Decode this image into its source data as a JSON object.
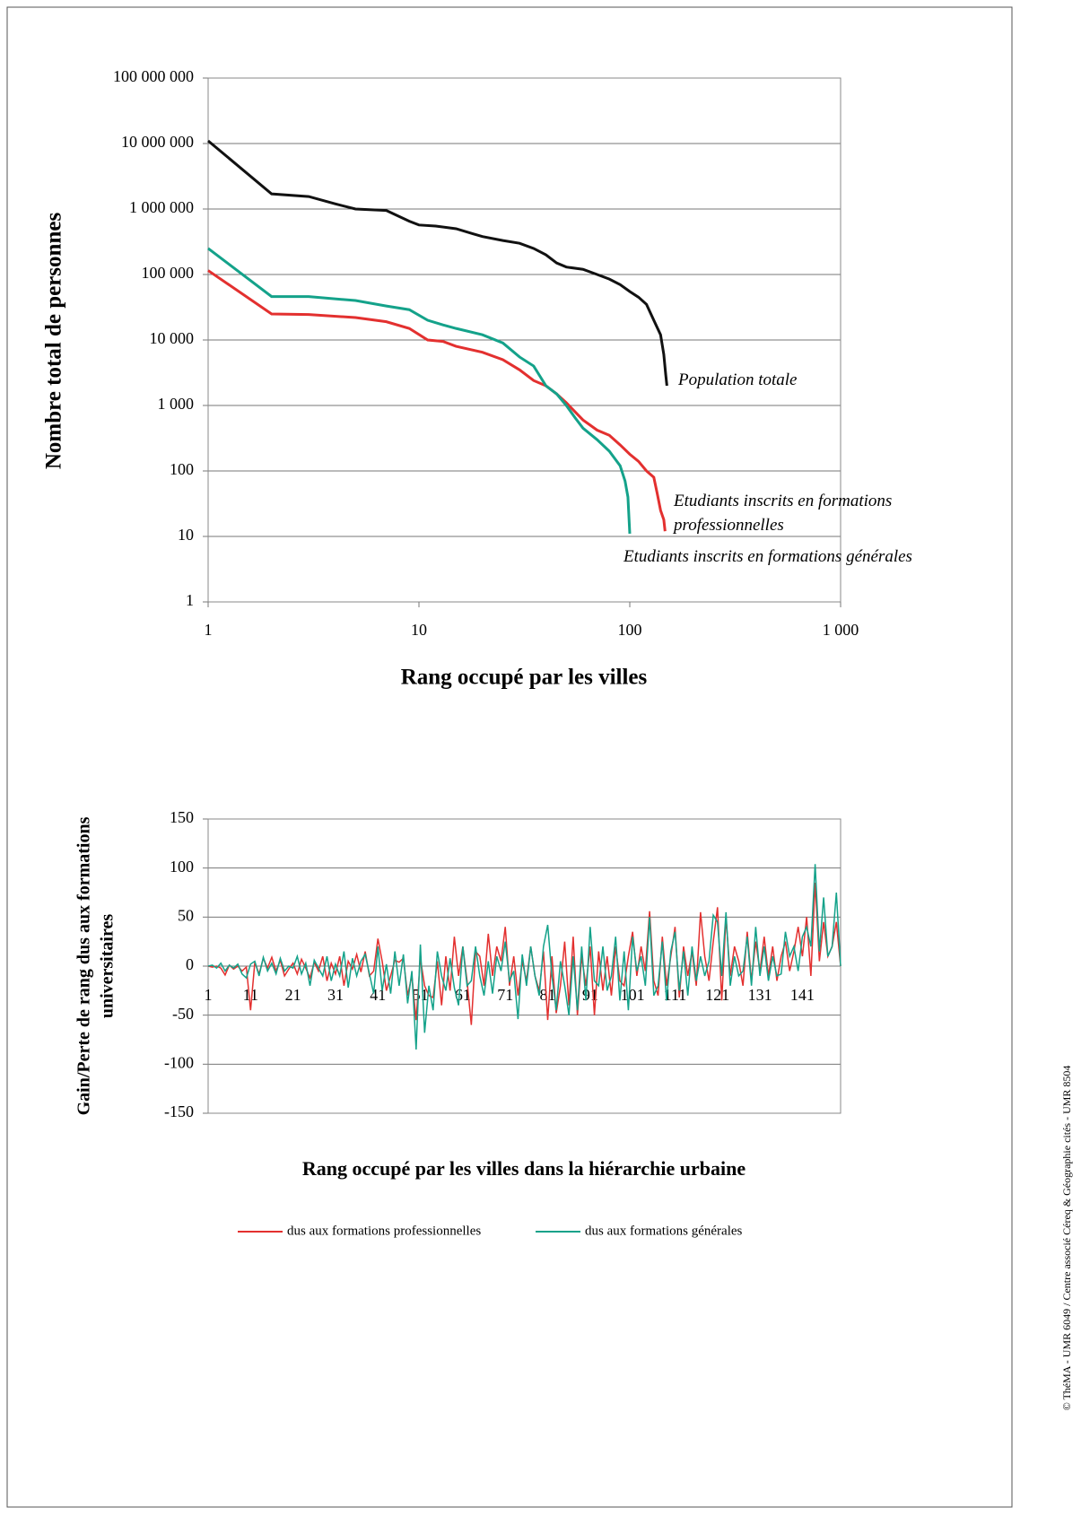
{
  "chart_data": [
    {
      "type": "line",
      "xscale": "log",
      "yscale": "log",
      "ylabel": "Nombre total de personnes",
      "xlabel": "Rang occupé par les villes",
      "xlim": [
        1,
        1000
      ],
      "xticks": [
        1,
        10,
        100,
        {
          "value": 1000,
          "label": "1 000"
        }
      ],
      "ylim": [
        1,
        100000000
      ],
      "yticks": [
        1,
        10,
        100,
        {
          "value": 1000,
          "label": "1 000"
        },
        {
          "value": 10000,
          "label": "10 000"
        },
        {
          "value": 100000,
          "label": "100 000"
        },
        {
          "value": 1000000,
          "label": "1 000 000"
        },
        {
          "value": 10000000,
          "label": "10 000 000"
        },
        {
          "value": 100000000,
          "label": "100 000 000"
        }
      ],
      "grid": true,
      "series": [
        {
          "name": "Population totale",
          "color": "#111111",
          "x": [
            1,
            2,
            3,
            4,
            5,
            7,
            9,
            10,
            12,
            15,
            18,
            20,
            25,
            30,
            35,
            40,
            45,
            50,
            60,
            70,
            80,
            90,
            100,
            110,
            120,
            130,
            140,
            145,
            148,
            150
          ],
          "values": [
            11000000,
            1700000,
            1550000,
            1200000,
            1000000,
            950000,
            650000,
            570000,
            550000,
            500000,
            420000,
            380000,
            330000,
            300000,
            250000,
            200000,
            150000,
            130000,
            120000,
            100000,
            85000,
            70000,
            55000,
            45000,
            35000,
            20000,
            12000,
            6000,
            3000,
            2000
          ]
        },
        {
          "name": "Etudiants inscrits en formations professionnelles",
          "color": "#e3302f",
          "x": [
            1,
            2,
            3,
            5,
            7,
            9,
            11,
            13,
            15,
            20,
            25,
            30,
            35,
            40,
            45,
            50,
            55,
            60,
            70,
            80,
            90,
            100,
            110,
            120,
            130,
            135,
            140,
            145,
            147
          ],
          "values": [
            115000,
            25000,
            24500,
            22000,
            19000,
            15000,
            10000,
            9500,
            8000,
            6500,
            5000,
            3500,
            2400,
            2000,
            1500,
            1100,
            800,
            600,
            420,
            350,
            250,
            180,
            140,
            100,
            80,
            45,
            25,
            18,
            12
          ]
        },
        {
          "name": "Etudiants inscrits en formations générales",
          "color": "#14a28a",
          "x": [
            1,
            2,
            3,
            5,
            7,
            9,
            11,
            13,
            15,
            20,
            25,
            30,
            35,
            40,
            45,
            50,
            55,
            60,
            70,
            80,
            90,
            95,
            98,
            100
          ],
          "values": [
            250000,
            46000,
            46000,
            40000,
            33000,
            29000,
            20000,
            17000,
            15000,
            12000,
            9000,
            5500,
            4000,
            2000,
            1500,
            1000,
            650,
            450,
            300,
            200,
            120,
            70,
            40,
            11
          ]
        }
      ]
    },
    {
      "type": "line",
      "ylabel": [
        "Gain/Perte de rang dus aux formations",
        "universitaires"
      ],
      "xlabel": "Rang occupé par les villes dans la hiérarchie urbaine",
      "ylim": [
        -150,
        150
      ],
      "yticks": [
        -150,
        -100,
        -50,
        0,
        50,
        100,
        150
      ],
      "grid": true,
      "legend": "bottom",
      "categories": [
        "1",
        null,
        null,
        null,
        null,
        null,
        null,
        null,
        null,
        null,
        "11",
        null,
        null,
        null,
        null,
        null,
        null,
        null,
        null,
        null,
        "21",
        null,
        null,
        null,
        null,
        null,
        null,
        null,
        null,
        null,
        "31",
        null,
        null,
        null,
        null,
        null,
        null,
        null,
        null,
        null,
        "41",
        null,
        null,
        null,
        null,
        null,
        null,
        null,
        null,
        null,
        "51",
        null,
        null,
        null,
        null,
        null,
        null,
        null,
        null,
        null,
        "61",
        null,
        null,
        null,
        null,
        null,
        null,
        null,
        null,
        null,
        "71",
        null,
        null,
        null,
        null,
        null,
        null,
        null,
        null,
        null,
        "81",
        null,
        null,
        null,
        null,
        null,
        null,
        null,
        null,
        null,
        "91",
        null,
        null,
        null,
        null,
        null,
        null,
        null,
        null,
        null,
        "101",
        null,
        null,
        null,
        null,
        null,
        null,
        null,
        null,
        null,
        "111",
        null,
        null,
        null,
        null,
        null,
        null,
        null,
        null,
        null,
        "121",
        null,
        null,
        null,
        null,
        null,
        null,
        null,
        null,
        null,
        "131",
        null,
        null,
        null,
        null,
        null,
        null,
        null,
        null,
        null,
        "141",
        null,
        null,
        null,
        null,
        null,
        null,
        null,
        null,
        null
      ],
      "series": [
        {
          "name": "dus aux formations professionnelles",
          "color": "#e3302f",
          "values": [
            0,
            -1,
            0,
            -2,
            -9,
            1,
            -3,
            0,
            -5,
            -1,
            -45,
            4,
            -8,
            8,
            -2,
            9,
            -5,
            6,
            -10,
            -3,
            3,
            -8,
            7,
            -2,
            -12,
            4,
            -5,
            10,
            -15,
            3,
            -8,
            10,
            -20,
            5,
            -3,
            12,
            -6,
            15,
            -10,
            -5,
            28,
            5,
            -25,
            -10,
            6,
            4,
            8,
            -30,
            -10,
            -55,
            8,
            -20,
            -30,
            -32,
            5,
            -40,
            10,
            -25,
            30,
            -10,
            20,
            -15,
            -60,
            15,
            10,
            -20,
            33,
            -10,
            20,
            5,
            40,
            -20,
            10,
            -30,
            5,
            -15,
            20,
            -10,
            -25,
            15,
            -55,
            10,
            -48,
            -20,
            25,
            -40,
            30,
            -50,
            10,
            -20,
            20,
            -50,
            15,
            -25,
            10,
            -30,
            20,
            -15,
            -20,
            10,
            35,
            -10,
            20,
            -5,
            56,
            -15,
            -30,
            30,
            -20,
            10,
            40,
            -32,
            20,
            -10,
            15,
            -20,
            55,
            10,
            -15,
            25,
            60,
            -35,
            50,
            -10,
            20,
            5,
            -20,
            35,
            -15,
            25,
            -5,
            30,
            -10,
            20,
            -15,
            10,
            25,
            -5,
            15,
            40,
            10,
            50,
            -10,
            85,
            5,
            45,
            10,
            20,
            45,
            0
          ]
        },
        {
          "name": "dus aux formations générales",
          "color": "#14a28a",
          "values": [
            0,
            1,
            -2,
            3,
            -5,
            1,
            -2,
            2,
            -8,
            -12,
            2,
            5,
            -10,
            9,
            -5,
            3,
            -8,
            8,
            -5,
            0,
            -2,
            10,
            -8,
            3,
            -20,
            6,
            -2,
            -10,
            10,
            -15,
            2,
            -10,
            15,
            -22,
            8,
            -10,
            5,
            12,
            -8,
            -28,
            20,
            -25,
            2,
            -28,
            15,
            -20,
            12,
            -38,
            -5,
            -85,
            22,
            -68,
            -20,
            -45,
            15,
            -10,
            -25,
            8,
            -22,
            -40,
            20,
            -20,
            -15,
            20,
            -10,
            -30,
            5,
            -28,
            10,
            -5,
            25,
            -15,
            -5,
            -54,
            12,
            -20,
            20,
            -10,
            -30,
            20,
            42,
            -10,
            -45,
            5,
            -20,
            -50,
            10,
            -45,
            20,
            -35,
            40,
            -15,
            -20,
            20,
            -25,
            -10,
            30,
            -35,
            15,
            -45,
            30,
            -5,
            10,
            -20,
            50,
            -30,
            -20,
            25,
            -35,
            15,
            35,
            -25,
            15,
            -30,
            20,
            -15,
            10,
            -10,
            5,
            52,
            45,
            -10,
            55,
            -20,
            10,
            -10,
            -5,
            30,
            -20,
            40,
            -10,
            20,
            -15,
            10,
            -10,
            -8,
            35,
            10,
            20,
            -5,
            30,
            40,
            20,
            104,
            15,
            70,
            10,
            20,
            75,
            0
          ]
        }
      ]
    }
  ],
  "credit": "© ThéMA - UMR 6049 / Centre associé Céreq & Géographie cités - UMR 8504"
}
